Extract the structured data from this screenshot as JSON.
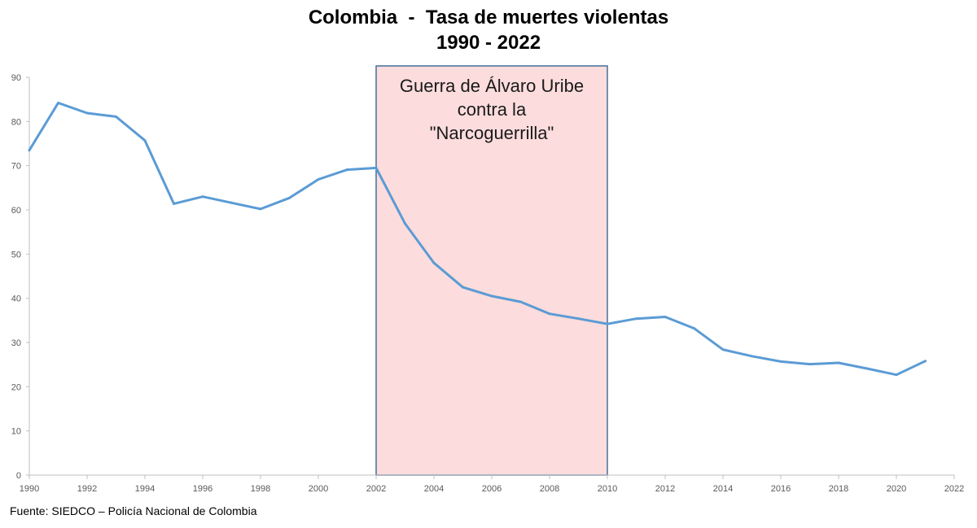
{
  "chart_data": {
    "type": "line",
    "title_line1": "Colombia  -  Tasa de muertes violentas",
    "title_line2": "1990 - 2022",
    "xlabel": "",
    "ylabel": "",
    "xlim": [
      1990,
      2022
    ],
    "ylim": [
      0,
      90
    ],
    "x_ticks": [
      "1990",
      "1992",
      "1994",
      "1996",
      "1998",
      "2000",
      "2002",
      "2004",
      "2006",
      "2008",
      "2010",
      "2012",
      "2014",
      "2016",
      "2018",
      "2020",
      "2022"
    ],
    "y_ticks": [
      "0",
      "10",
      "20",
      "30",
      "40",
      "50",
      "60",
      "70",
      "80",
      "90"
    ],
    "series": [
      {
        "color": "#5b9bd5",
        "points": [
          {
            "x": 1990,
            "y": 73.5
          },
          {
            "x": 1991,
            "y": 84.2
          },
          {
            "x": 1992,
            "y": 81.9
          },
          {
            "x": 1993,
            "y": 81.1
          },
          {
            "x": 1994,
            "y": 75.7
          },
          {
            "x": 1995,
            "y": 61.4
          },
          {
            "x": 1996,
            "y": 63.0
          },
          {
            "x": 1997,
            "y": 61.6
          },
          {
            "x": 1998,
            "y": 60.2
          },
          {
            "x": 1999,
            "y": 62.7
          },
          {
            "x": 2000,
            "y": 66.9
          },
          {
            "x": 2001,
            "y": 69.1
          },
          {
            "x": 2002,
            "y": 69.5
          },
          {
            "x": 2003,
            "y": 56.9
          },
          {
            "x": 2004,
            "y": 48.0
          },
          {
            "x": 2005,
            "y": 42.5
          },
          {
            "x": 2006,
            "y": 40.5
          },
          {
            "x": 2007,
            "y": 39.2
          },
          {
            "x": 2008,
            "y": 36.5
          },
          {
            "x": 2009,
            "y": 35.4
          },
          {
            "x": 2010,
            "y": 34.2
          },
          {
            "x": 2011,
            "y": 35.4
          },
          {
            "x": 2012,
            "y": 35.8
          },
          {
            "x": 2013,
            "y": 33.2
          },
          {
            "x": 2014,
            "y": 28.4
          },
          {
            "x": 2015,
            "y": 26.9
          },
          {
            "x": 2016,
            "y": 25.7
          },
          {
            "x": 2017,
            "y": 25.1
          },
          {
            "x": 2018,
            "y": 25.4
          },
          {
            "x": 2019,
            "y": 24.1
          },
          {
            "x": 2020,
            "y": 22.7
          },
          {
            "x": 2021,
            "y": 25.8
          }
        ]
      }
    ],
    "annotation": {
      "x_start": 2002,
      "x_end": 2010,
      "text_lines": [
        "Guerra de Álvaro Uribe",
        "contra la",
        "\"Narcoguerrilla\""
      ],
      "fill": "#fcdcdc",
      "stroke": "#41719c"
    },
    "source": "Fuente: SIEDCO – Policía Nacional de Colombia",
    "grid": false,
    "legend": "none"
  }
}
